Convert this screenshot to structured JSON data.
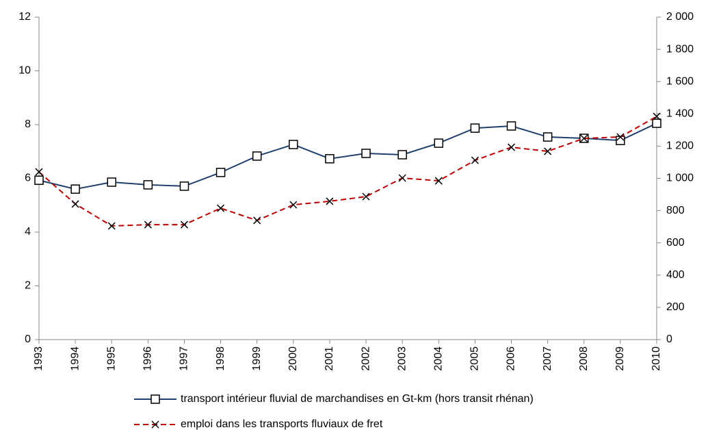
{
  "chart_data": {
    "type": "line",
    "categories": [
      "1993",
      "1994",
      "1995",
      "1996",
      "1997",
      "1998",
      "1999",
      "2000",
      "2001",
      "2002",
      "2003",
      "2004",
      "2005",
      "2006",
      "2007",
      "2008",
      "2009",
      "2010"
    ],
    "series": [
      {
        "name": "transport intérieur fluvial de marchandises en Gt-km (hors transit rhénan)",
        "color": "#1f3f6e",
        "marker": "square",
        "dash": false,
        "values": [
          5.93,
          5.6,
          5.86,
          5.76,
          5.71,
          6.22,
          6.83,
          7.26,
          6.73,
          6.93,
          6.88,
          7.31,
          7.87,
          7.95,
          7.54,
          7.49,
          7.41,
          8.05
        ]
      },
      {
        "name": "emploi dans les transports fluviaux de fret",
        "color": "#c00000",
        "marker": "x",
        "dash": true,
        "axis": "y2",
        "values": [
          1040,
          841,
          705,
          713,
          713,
          815,
          739,
          836,
          858,
          887,
          1002,
          985,
          1112,
          1193,
          1168,
          1248,
          1257,
          1384
        ]
      }
    ],
    "ylim": [
      0,
      12
    ],
    "yticks": [
      0,
      2,
      4,
      6,
      8,
      10,
      12
    ],
    "y2lim": [
      0,
      2000
    ],
    "y2ticks": [
      0,
      200,
      400,
      600,
      800,
      {
        "value": 1000,
        "label": "1 000"
      },
      {
        "value": 1200,
        "label": "1 200"
      },
      {
        "value": 1400,
        "label": "1 400"
      },
      {
        "value": 1600,
        "label": "1 600"
      },
      {
        "value": 1800,
        "label": "1 800"
      },
      {
        "value": 2000,
        "label": "2 000"
      }
    ]
  }
}
